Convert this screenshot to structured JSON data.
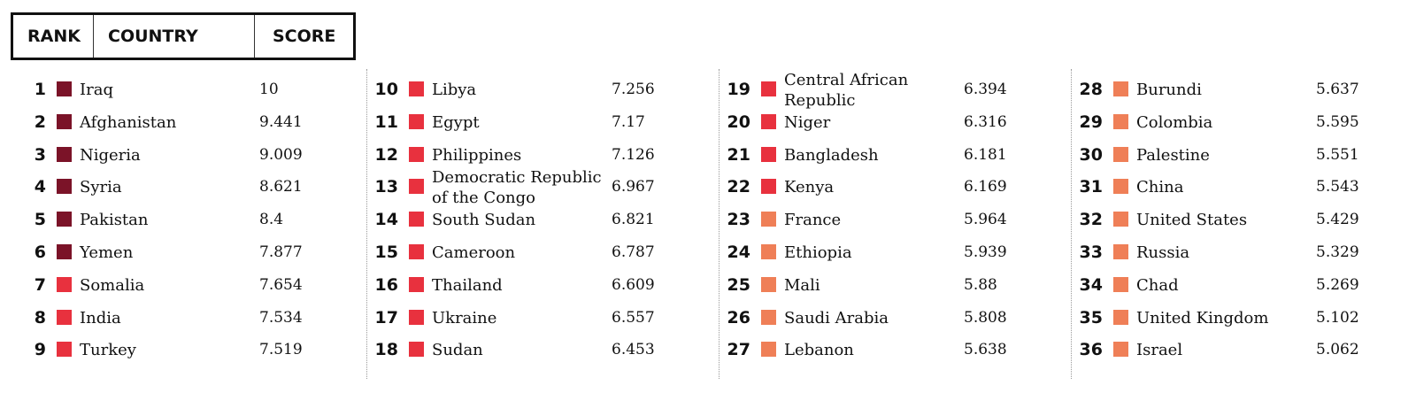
{
  "header": {
    "rank": "RANK",
    "country": "COUNTRY",
    "score": "SCORE"
  },
  "colors": {
    "tier1": "#7b1328",
    "tier2": "#e8313e",
    "tier3": "#ef7f57"
  },
  "chart_data": {
    "type": "table",
    "columns": [
      "RANK",
      "COUNTRY",
      "SCORE"
    ],
    "rows": [
      {
        "rank": "1",
        "country": "Iraq",
        "score": "10",
        "tier": "tier1"
      },
      {
        "rank": "2",
        "country": "Afghanistan",
        "score": "9.441",
        "tier": "tier1"
      },
      {
        "rank": "3",
        "country": "Nigeria",
        "score": "9.009",
        "tier": "tier1"
      },
      {
        "rank": "4",
        "country": "Syria",
        "score": "8.621",
        "tier": "tier1"
      },
      {
        "rank": "5",
        "country": "Pakistan",
        "score": "8.4",
        "tier": "tier1"
      },
      {
        "rank": "6",
        "country": "Yemen",
        "score": "7.877",
        "tier": "tier1"
      },
      {
        "rank": "7",
        "country": "Somalia",
        "score": "7.654",
        "tier": "tier2"
      },
      {
        "rank": "8",
        "country": "India",
        "score": "7.534",
        "tier": "tier2"
      },
      {
        "rank": "9",
        "country": "Turkey",
        "score": "7.519",
        "tier": "tier2"
      },
      {
        "rank": "10",
        "country": "Libya",
        "score": "7.256",
        "tier": "tier2"
      },
      {
        "rank": "11",
        "country": "Egypt",
        "score": "7.17",
        "tier": "tier2"
      },
      {
        "rank": "12",
        "country": "Philippines",
        "score": "7.126",
        "tier": "tier2"
      },
      {
        "rank": "13",
        "country": "Democratic Republic of the Congo",
        "score": "6.967",
        "tier": "tier2"
      },
      {
        "rank": "14",
        "country": "South Sudan",
        "score": "6.821",
        "tier": "tier2"
      },
      {
        "rank": "15",
        "country": "Cameroon",
        "score": "6.787",
        "tier": "tier2"
      },
      {
        "rank": "16",
        "country": "Thailand",
        "score": "6.609",
        "tier": "tier2"
      },
      {
        "rank": "17",
        "country": "Ukraine",
        "score": "6.557",
        "tier": "tier2"
      },
      {
        "rank": "18",
        "country": "Sudan",
        "score": "6.453",
        "tier": "tier2"
      },
      {
        "rank": "19",
        "country": "Central African Republic",
        "score": "6.394",
        "tier": "tier2"
      },
      {
        "rank": "20",
        "country": "Niger",
        "score": "6.316",
        "tier": "tier2"
      },
      {
        "rank": "21",
        "country": "Bangladesh",
        "score": "6.181",
        "tier": "tier2"
      },
      {
        "rank": "22",
        "country": "Kenya",
        "score": "6.169",
        "tier": "tier2"
      },
      {
        "rank": "23",
        "country": "France",
        "score": "5.964",
        "tier": "tier3"
      },
      {
        "rank": "24",
        "country": "Ethiopia",
        "score": "5.939",
        "tier": "tier3"
      },
      {
        "rank": "25",
        "country": "Mali",
        "score": "5.88",
        "tier": "tier3"
      },
      {
        "rank": "26",
        "country": "Saudi Arabia",
        "score": "5.808",
        "tier": "tier3"
      },
      {
        "rank": "27",
        "country": "Lebanon",
        "score": "5.638",
        "tier": "tier3"
      },
      {
        "rank": "28",
        "country": "Burundi",
        "score": "5.637",
        "tier": "tier3"
      },
      {
        "rank": "29",
        "country": "Colombia",
        "score": "5.595",
        "tier": "tier3"
      },
      {
        "rank": "30",
        "country": "Palestine",
        "score": "5.551",
        "tier": "tier3"
      },
      {
        "rank": "31",
        "country": "China",
        "score": "5.543",
        "tier": "tier3"
      },
      {
        "rank": "32",
        "country": "United States",
        "score": "5.429",
        "tier": "tier3"
      },
      {
        "rank": "33",
        "country": "Russia",
        "score": "5.329",
        "tier": "tier3"
      },
      {
        "rank": "34",
        "country": "Chad",
        "score": "5.269",
        "tier": "tier3"
      },
      {
        "rank": "35",
        "country": "United Kingdom",
        "score": "5.102",
        "tier": "tier3"
      },
      {
        "rank": "36",
        "country": "Israel",
        "score": "5.062",
        "tier": "tier3"
      }
    ]
  }
}
